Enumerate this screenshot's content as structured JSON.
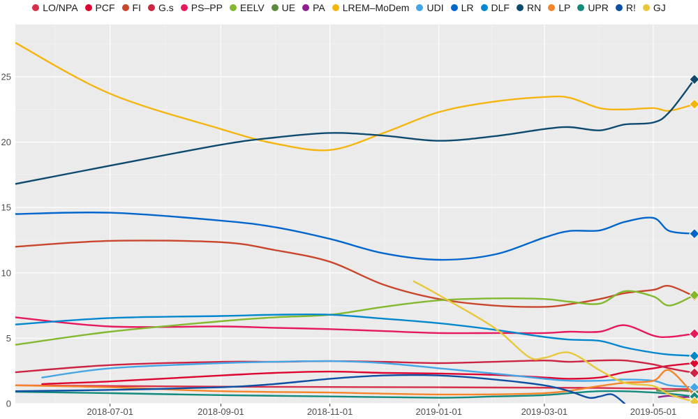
{
  "chart_data": {
    "type": "line",
    "title": "",
    "xlabel": "",
    "ylabel": "",
    "x_type": "date",
    "xlim": [
      "2018-05-09",
      "2019-05-26"
    ],
    "ylim": [
      0,
      29
    ],
    "x_ticks": [
      "2018-07-01",
      "2018-09-01",
      "2018-11-01",
      "2019-01-01",
      "2019-03-01",
      "2019-05-01"
    ],
    "y_ticks": [
      0,
      5,
      10,
      15,
      20,
      25
    ],
    "grid": true,
    "legend_position": "top",
    "series": [
      {
        "name": "LO/NPA",
        "color": "#d62f4a",
        "x": [
          "2018-05-09",
          "2018-09-01",
          "2019-01-01",
          "2019-04-01",
          "2019-05-24"
        ],
        "y": [
          1.4,
          1.3,
          1.25,
          1.2,
          1.1
        ]
      },
      {
        "name": "PCF",
        "color": "#dd0530",
        "x": [
          "2018-05-24",
          "2018-07-01",
          "2018-09-01",
          "2018-10-01",
          "2018-11-01",
          "2018-12-01",
          "2019-01-01",
          "2019-02-01",
          "2019-03-01",
          "2019-03-15",
          "2019-04-01",
          "2019-04-15",
          "2019-05-01",
          "2019-05-10",
          "2019-05-24"
        ],
        "y": [
          1.5,
          1.7,
          2.15,
          2.35,
          2.45,
          2.35,
          2.3,
          2.2,
          2.0,
          1.9,
          2.0,
          2.4,
          2.7,
          2.9,
          3.1
        ]
      },
      {
        "name": "FI",
        "color": "#c9462c",
        "x": [
          "2018-05-09",
          "2018-07-01",
          "2018-09-01",
          "2018-10-01",
          "2018-11-01",
          "2018-12-01",
          "2019-01-01",
          "2019-02-01",
          "2019-03-01",
          "2019-03-15",
          "2019-04-01",
          "2019-04-15",
          "2019-05-01",
          "2019-05-10",
          "2019-05-24"
        ],
        "y": [
          12.0,
          12.45,
          12.35,
          11.75,
          10.85,
          9.1,
          8.0,
          7.5,
          7.4,
          7.6,
          8.0,
          8.45,
          8.7,
          9.0,
          8.2
        ]
      },
      {
        "name": "G.s",
        "color": "#cc2443",
        "x": [
          "2018-05-09",
          "2018-07-01",
          "2018-09-01",
          "2018-10-01",
          "2018-11-01",
          "2018-12-01",
          "2019-01-01",
          "2019-02-01",
          "2019-03-01",
          "2019-03-15",
          "2019-04-01",
          "2019-04-15",
          "2019-05-01",
          "2019-05-10",
          "2019-05-24"
        ],
        "y": [
          2.4,
          2.95,
          3.2,
          3.2,
          3.25,
          3.2,
          3.1,
          3.2,
          3.3,
          3.2,
          3.3,
          3.3,
          3.0,
          2.7,
          2.35
        ]
      },
      {
        "name": "PS–PP",
        "color": "#e5195b",
        "x": [
          "2018-05-09",
          "2018-07-01",
          "2018-09-01",
          "2018-10-01",
          "2018-11-01",
          "2018-12-01",
          "2019-01-01",
          "2019-02-01",
          "2019-03-01",
          "2019-03-15",
          "2019-04-01",
          "2019-04-15",
          "2019-05-01",
          "2019-05-10",
          "2019-05-24"
        ],
        "y": [
          6.6,
          5.9,
          5.9,
          5.8,
          5.7,
          5.55,
          5.4,
          5.4,
          5.4,
          5.5,
          5.5,
          6.0,
          5.2,
          5.1,
          5.35
        ]
      },
      {
        "name": "EELV",
        "color": "#83b82f",
        "x": [
          "2018-05-09",
          "2018-07-01",
          "2018-09-01",
          "2018-10-01",
          "2018-11-01",
          "2018-12-01",
          "2019-01-01",
          "2019-02-01",
          "2019-03-01",
          "2019-03-15",
          "2019-04-01",
          "2019-04-15",
          "2019-05-01",
          "2019-05-10",
          "2019-05-24"
        ],
        "y": [
          4.5,
          5.5,
          6.3,
          6.6,
          6.8,
          7.4,
          7.9,
          8.05,
          8.0,
          7.8,
          7.65,
          8.6,
          8.2,
          7.5,
          8.3
        ]
      },
      {
        "name": "UE",
        "color": "#5b8a3c",
        "x": [
          "2019-05-03",
          "2019-05-10",
          "2019-05-17",
          "2019-05-24"
        ],
        "y": [
          1.0,
          0.95,
          1.0,
          0.9
        ]
      },
      {
        "name": "PA",
        "color": "#8e1f8e",
        "x": [
          "2019-05-04",
          "2019-05-10",
          "2019-05-17",
          "2019-05-24"
        ],
        "y": [
          0.5,
          0.6,
          0.5,
          0.55
        ]
      },
      {
        "name": "LREM–MoDem",
        "color": "#f5b50f",
        "x": [
          "2018-05-09",
          "2018-07-01",
          "2018-09-01",
          "2018-10-01",
          "2018-11-01",
          "2018-12-01",
          "2019-01-01",
          "2019-02-01",
          "2019-03-01",
          "2019-03-15",
          "2019-04-01",
          "2019-04-15",
          "2019-05-01",
          "2019-05-10",
          "2019-05-24"
        ],
        "y": [
          27.6,
          23.7,
          21.0,
          19.9,
          19.4,
          20.7,
          22.3,
          23.1,
          23.45,
          23.4,
          22.6,
          22.5,
          22.6,
          22.4,
          22.9
        ]
      },
      {
        "name": "UDI",
        "color": "#45a6e6",
        "x": [
          "2018-05-24",
          "2018-07-01",
          "2018-09-01",
          "2018-10-01",
          "2018-11-01",
          "2018-12-01",
          "2019-01-01",
          "2019-02-01",
          "2019-03-01",
          "2019-03-15",
          "2019-04-01",
          "2019-04-15",
          "2019-05-01",
          "2019-05-10",
          "2019-05-24"
        ],
        "y": [
          2.0,
          2.7,
          3.1,
          3.2,
          3.25,
          3.1,
          2.7,
          2.3,
          1.9,
          1.75,
          1.75,
          1.85,
          1.75,
          1.4,
          1.25
        ]
      },
      {
        "name": "LR",
        "color": "#0066cc",
        "x": [
          "2018-05-09",
          "2018-07-01",
          "2018-09-01",
          "2018-10-01",
          "2018-11-01",
          "2018-12-01",
          "2019-01-01",
          "2019-02-01",
          "2019-03-01",
          "2019-03-15",
          "2019-04-01",
          "2019-04-15",
          "2019-05-01",
          "2019-05-10",
          "2019-05-24"
        ],
        "y": [
          14.5,
          14.6,
          14.0,
          13.5,
          12.6,
          11.5,
          11.0,
          11.4,
          12.7,
          13.2,
          13.25,
          13.9,
          14.2,
          13.2,
          13.0
        ]
      },
      {
        "name": "DLF",
        "color": "#0087cd",
        "x": [
          "2018-05-09",
          "2018-07-01",
          "2018-09-01",
          "2018-10-01",
          "2018-11-01",
          "2018-12-01",
          "2019-01-01",
          "2019-02-01",
          "2019-03-01",
          "2019-03-15",
          "2019-04-01",
          "2019-04-15",
          "2019-05-01",
          "2019-05-10",
          "2019-05-24"
        ],
        "y": [
          6.05,
          6.55,
          6.7,
          6.8,
          6.8,
          6.5,
          6.15,
          5.65,
          5.1,
          4.9,
          4.8,
          4.3,
          3.9,
          3.75,
          3.65
        ]
      },
      {
        "name": "RN",
        "color": "#0d4a6e",
        "x": [
          "2018-05-09",
          "2018-07-01",
          "2018-09-01",
          "2018-10-01",
          "2018-11-01",
          "2018-12-01",
          "2019-01-01",
          "2019-02-01",
          "2019-03-01",
          "2019-03-15",
          "2019-04-01",
          "2019-04-15",
          "2019-05-01",
          "2019-05-10",
          "2019-05-24"
        ],
        "y": [
          16.8,
          18.2,
          19.8,
          20.35,
          20.7,
          20.5,
          20.1,
          20.45,
          21.0,
          21.15,
          20.9,
          21.35,
          21.5,
          22.3,
          24.8
        ]
      },
      {
        "name": "LP",
        "color": "#f5842a",
        "x": [
          "2018-05-09",
          "2018-07-01",
          "2018-09-01",
          "2018-11-01",
          "2019-01-01",
          "2019-03-01",
          "2019-04-01",
          "2019-04-15",
          "2019-05-01",
          "2019-05-10",
          "2019-05-24"
        ],
        "y": [
          1.4,
          1.25,
          0.95,
          0.85,
          0.7,
          0.8,
          1.35,
          1.6,
          1.75,
          2.55,
          0.6
        ]
      },
      {
        "name": "UPR",
        "color": "#138a7d",
        "x": [
          "2018-05-09",
          "2018-07-01",
          "2018-09-01",
          "2018-11-01",
          "2019-01-01",
          "2019-02-01",
          "2019-03-01",
          "2019-04-01",
          "2019-05-01",
          "2019-05-24"
        ],
        "y": [
          0.9,
          0.8,
          0.65,
          0.55,
          0.45,
          0.55,
          0.65,
          0.95,
          0.85,
          0.55
        ]
      },
      {
        "name": "R!",
        "color": "#0c4fa3",
        "x": [
          "2018-05-09",
          "2018-07-01",
          "2018-09-01",
          "2018-10-01",
          "2018-11-01",
          "2018-12-01",
          "2019-01-01",
          "2019-02-01",
          "2019-03-01",
          "2019-03-15",
          "2019-03-26",
          "2019-04-01",
          "2019-04-08",
          "2019-04-15"
        ],
        "y": [
          0.95,
          1.05,
          1.25,
          1.5,
          1.9,
          2.15,
          2.15,
          1.85,
          1.4,
          0.95,
          0.45,
          0.55,
          0.7,
          0.0
        ]
      },
      {
        "name": "GJ",
        "color": "#e8c73a",
        "x": [
          "2018-12-18",
          "2019-01-01",
          "2019-02-01",
          "2019-02-20",
          "2019-03-01",
          "2019-03-15",
          "2019-04-01",
          "2019-04-15",
          "2019-05-01",
          "2019-05-10",
          "2019-05-24"
        ],
        "y": [
          9.35,
          8.3,
          5.8,
          3.6,
          3.5,
          3.9,
          2.55,
          1.6,
          1.35,
          0.7,
          0.15
        ]
      }
    ]
  }
}
